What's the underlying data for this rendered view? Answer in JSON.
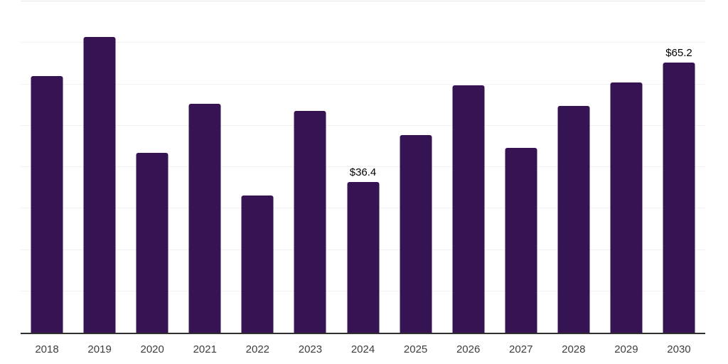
{
  "chart_data": {
    "type": "bar",
    "title": "",
    "xlabel": "",
    "ylabel": "",
    "categories": [
      "2018",
      "2019",
      "2020",
      "2021",
      "2022",
      "2023",
      "2024",
      "2025",
      "2026",
      "2027",
      "2028",
      "2029",
      "2030"
    ],
    "values": [
      62.0,
      71.4,
      43.4,
      55.2,
      33.1,
      53.5,
      36.4,
      47.8,
      59.8,
      44.6,
      54.8,
      60.5,
      65.2
    ],
    "data_labels": {
      "2024": "$36.4",
      "2030": "$65.2"
    },
    "value_prefix": "$",
    "ylim": [
      0,
      80
    ],
    "grid_interval": 10,
    "grid": "on",
    "legend": "none",
    "y_tick_labels_visible": false,
    "colors": {
      "bar": "#361353",
      "axis": "#2f2f2f",
      "gridline": "#f1f1f1",
      "top_gridline": "#e8e8e8",
      "tick_label": "#3d3d3d",
      "value_label": "#000000",
      "background": "#ffffff"
    }
  }
}
